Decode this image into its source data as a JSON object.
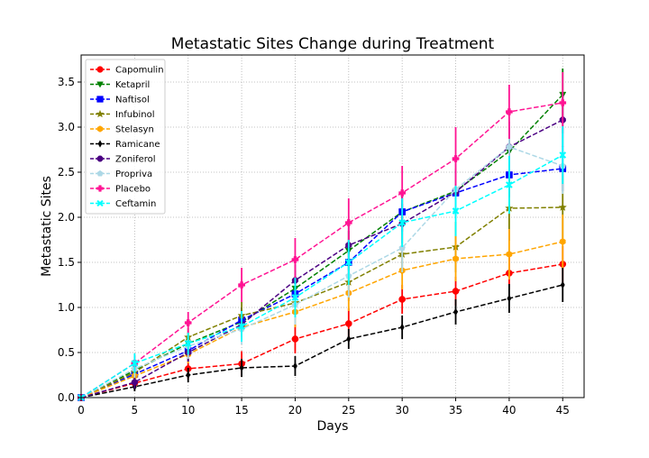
{
  "chart_data": {
    "type": "line",
    "title": "Metastatic Sites Change during Treatment",
    "xlabel": "Days",
    "ylabel": "Metastatic Sites",
    "xlim": [
      0,
      47
    ],
    "ylim": [
      0,
      3.8
    ],
    "x": [
      0,
      5,
      10,
      15,
      20,
      25,
      30,
      35,
      40,
      45
    ],
    "x_ticks": [
      "0",
      "5",
      "10",
      "15",
      "20",
      "25",
      "30",
      "35",
      "40",
      "45"
    ],
    "y_ticks": [
      "0.0",
      "0.5",
      "1.0",
      "1.5",
      "2.0",
      "2.5",
      "3.0",
      "3.5"
    ],
    "grid": true,
    "grid_style": "dotted",
    "legend_position": "upper-left",
    "series": [
      {
        "name": "Capomulin",
        "color": "#ff0000",
        "marker": "circle",
        "values": [
          0,
          0.16,
          0.32,
          0.375,
          0.65,
          0.82,
          1.09,
          1.18,
          1.38,
          1.48
        ],
        "errors": [
          0,
          0.07,
          0.12,
          0.14,
          0.16,
          0.17,
          0.16,
          0.16,
          0.18,
          0.2
        ]
      },
      {
        "name": "Ketapril",
        "color": "#008000",
        "marker": "triangle-down",
        "values": [
          0,
          0.3,
          0.6,
          0.84,
          1.21,
          1.63,
          2.06,
          2.29,
          2.73,
          3.36
        ],
        "errors": [
          0,
          0.1,
          0.12,
          0.16,
          0.2,
          0.22,
          0.25,
          0.25,
          0.27,
          0.29
        ]
      },
      {
        "name": "Naftisol",
        "color": "#0000ff",
        "marker": "square",
        "values": [
          0,
          0.26,
          0.52,
          0.86,
          1.15,
          1.5,
          2.06,
          2.27,
          2.47,
          2.54
        ],
        "errors": [
          0,
          0.09,
          0.12,
          0.14,
          0.17,
          0.2,
          0.22,
          0.24,
          0.25,
          0.25
        ]
      },
      {
        "name": "Infubinol",
        "color": "#808000",
        "marker": "star",
        "values": [
          0,
          0.28,
          0.67,
          0.91,
          1.05,
          1.28,
          1.59,
          1.67,
          2.1,
          2.11
        ],
        "errors": [
          0,
          0.07,
          0.1,
          0.15,
          0.18,
          0.21,
          0.22,
          0.28,
          0.36,
          0.41
        ]
      },
      {
        "name": "Stelasyn",
        "color": "#ffa500",
        "marker": "hexagon",
        "values": [
          0,
          0.24,
          0.48,
          0.78,
          0.95,
          1.16,
          1.41,
          1.54,
          1.59,
          1.73
        ],
        "errors": [
          0,
          0.07,
          0.1,
          0.13,
          0.17,
          0.2,
          0.21,
          0.25,
          0.28,
          0.3
        ]
      },
      {
        "name": "Ramicane",
        "color": "#000000",
        "marker": "thin-diamond",
        "values": [
          0,
          0.12,
          0.25,
          0.33,
          0.35,
          0.65,
          0.78,
          0.95,
          1.1,
          1.25
        ],
        "errors": [
          0,
          0.05,
          0.08,
          0.1,
          0.11,
          0.11,
          0.13,
          0.14,
          0.16,
          0.19
        ]
      },
      {
        "name": "Zoniferol",
        "color": "#4b0082",
        "marker": "octagon",
        "values": [
          0,
          0.17,
          0.5,
          0.81,
          1.3,
          1.69,
          1.93,
          2.28,
          2.78,
          3.08
        ],
        "errors": [
          0,
          0.07,
          0.1,
          0.14,
          0.18,
          0.21,
          0.22,
          0.26,
          0.28,
          0.3
        ]
      },
      {
        "name": "Propriva",
        "color": "#add8e6",
        "marker": "pentagon",
        "values": [
          0,
          0.32,
          0.57,
          0.76,
          1.03,
          1.35,
          1.66,
          2.31,
          2.78,
          2.57
        ],
        "errors": [
          0,
          0.1,
          0.14,
          0.17,
          0.22,
          0.24,
          0.27,
          0.3,
          0.33,
          0.31
        ]
      },
      {
        "name": "Placebo",
        "color": "#ff1493",
        "marker": "plus-filled",
        "values": [
          0,
          0.38,
          0.83,
          1.25,
          1.53,
          1.94,
          2.27,
          2.65,
          3.17,
          3.27
        ],
        "errors": [
          0,
          0.09,
          0.12,
          0.19,
          0.24,
          0.27,
          0.3,
          0.35,
          0.3,
          0.34
        ]
      },
      {
        "name": "Ceftamin",
        "color": "#00ffff",
        "marker": "x-filled",
        "values": [
          0,
          0.38,
          0.6,
          0.79,
          1.11,
          1.5,
          1.94,
          2.07,
          2.36,
          2.69
        ],
        "errors": [
          0,
          0.11,
          0.12,
          0.17,
          0.22,
          0.25,
          0.27,
          0.28,
          0.32,
          0.32
        ]
      }
    ]
  }
}
